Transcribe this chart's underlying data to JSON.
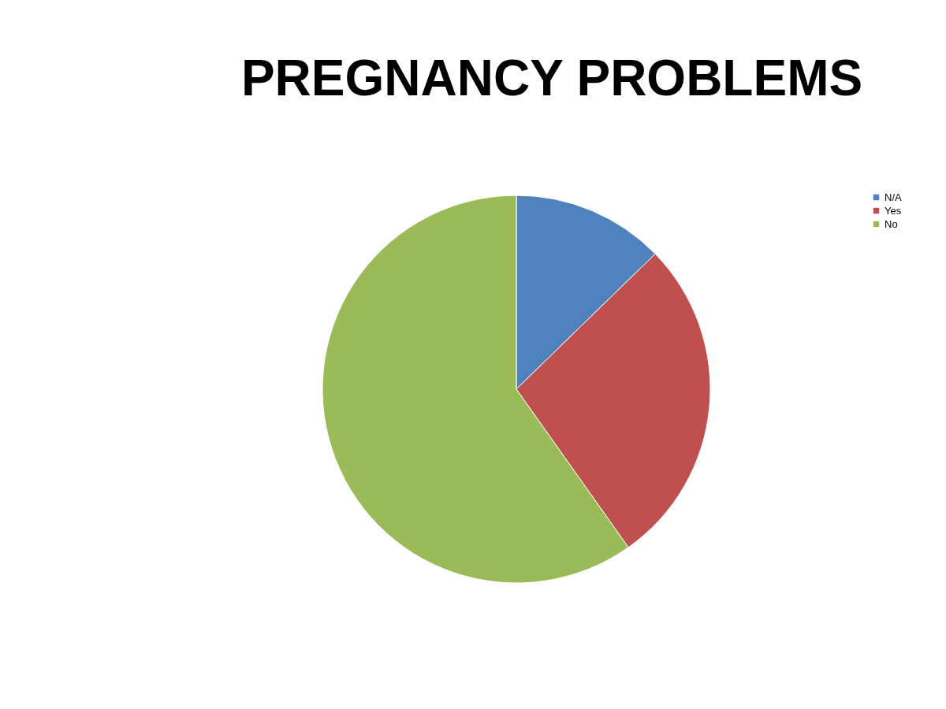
{
  "chart_data": {
    "type": "pie",
    "title": "PREGNANCY PROBLEMS",
    "categories": [
      "N/A",
      "Yes",
      "No"
    ],
    "values": [
      12.7,
      27.5,
      59.8
    ],
    "colors": [
      "#4f81bd",
      "#c0504d",
      "#9bbb59"
    ],
    "legend": "right"
  }
}
